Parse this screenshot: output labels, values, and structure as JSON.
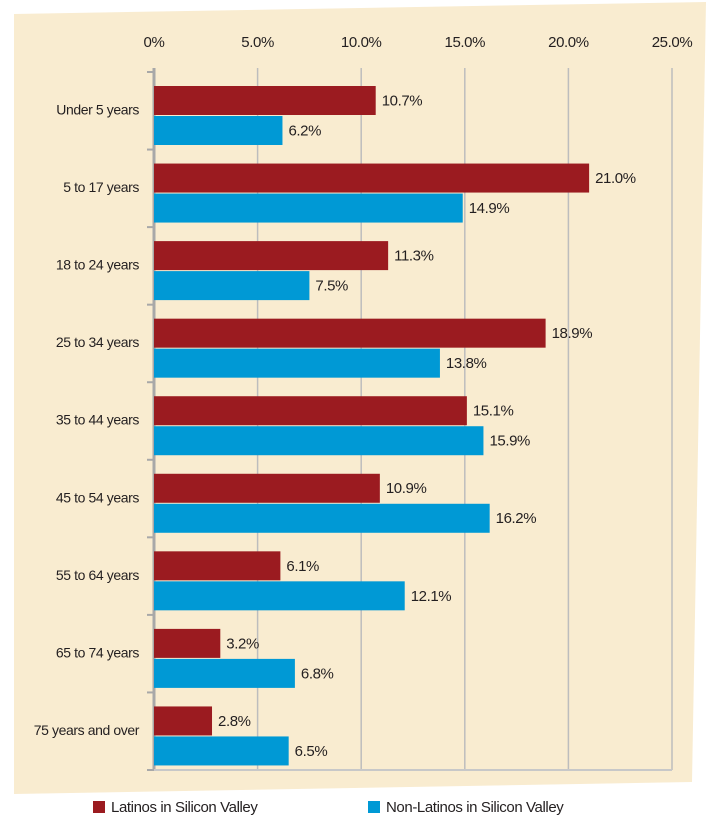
{
  "chart_data": {
    "type": "hbar",
    "categories": [
      "Under 5 years",
      "5 to 17 years",
      "18 to 24 years",
      "25 to 34 years",
      "35 to 44 years",
      "45 to 54 years",
      "55 to 64 years",
      "65 to 74 years",
      "75 years and over"
    ],
    "series": [
      {
        "name": "Latinos in Silicon Valley",
        "color": "#9b1b20",
        "values": [
          10.7,
          21.0,
          11.3,
          18.9,
          15.1,
          10.9,
          6.1,
          3.2,
          2.8
        ],
        "value_labels": [
          "10.7%",
          "21.0%",
          "11.3%",
          "18.9%",
          "15.1%",
          "10.9%",
          "6.1%",
          "3.2%",
          "2.8%"
        ]
      },
      {
        "name": "Non-Latinos in Silicon Valley",
        "color": "#0099d5",
        "values": [
          6.2,
          14.9,
          7.5,
          13.8,
          15.9,
          16.2,
          12.1,
          6.8,
          6.5
        ],
        "value_labels": [
          "6.2%",
          "14.9%",
          "7.5%",
          "13.8%",
          "15.9%",
          "16.2%",
          "12.1%",
          "6.8%",
          "6.5%"
        ]
      }
    ],
    "xlim": [
      0,
      25
    ],
    "xticks": [
      {
        "value": 0,
        "label": "0%"
      },
      {
        "value": 5,
        "label": "5.0%"
      },
      {
        "value": 10,
        "label": "10.0%"
      },
      {
        "value": 15,
        "label": "15.0%"
      },
      {
        "value": 20,
        "label": "20.0%"
      },
      {
        "value": 25,
        "label": "25.0%"
      }
    ],
    "grid": true,
    "legend": "bottom"
  }
}
